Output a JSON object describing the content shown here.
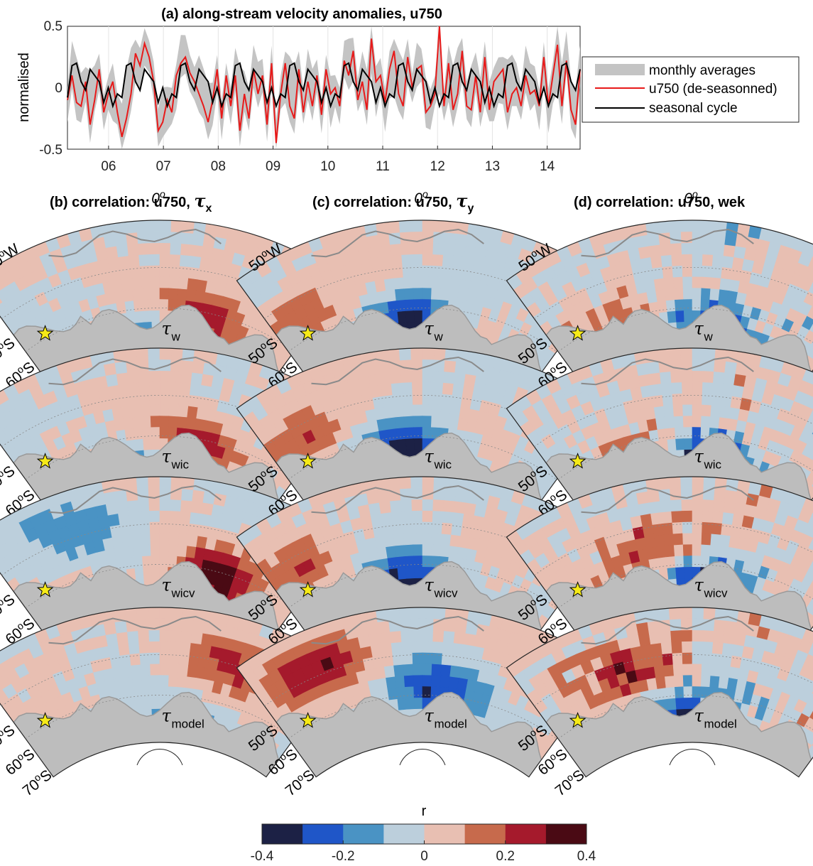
{
  "chart_data": [
    {
      "panel": "a",
      "type": "line",
      "title": "(a) along-stream velocity anomalies, u750",
      "ylabel": "normalised",
      "ylim": [
        -0.5,
        0.5
      ],
      "yticks": [
        "0.5",
        "0",
        "-0.5"
      ],
      "xticks": [
        "06",
        "07",
        "08",
        "09",
        "10",
        "11",
        "12",
        "13",
        "14"
      ],
      "x_range_years": [
        2005.25,
        2014.6
      ],
      "legend": {
        "placement": "right",
        "entries": [
          "monthly averages",
          "u750 (de-seasonned)",
          "seasonal cycle"
        ]
      },
      "colors": {
        "monthly": "#c4c4c4",
        "deseasoned": "#e81a1a",
        "seasonal": "#000000"
      },
      "seasonal_cycle_approx": [
        -0.08,
        0.18,
        0.2,
        0.05,
        -0.02,
        0.15,
        0.1,
        0.05,
        -0.12,
        0.0,
        -0.15,
        -0.05
      ],
      "series": [
        {
          "name": "u750 (de-seasonned)",
          "values": [
            -0.1,
            0.1,
            -0.12,
            -0.15,
            0.05,
            -0.3,
            -0.1,
            0.15,
            -0.2,
            -0.05,
            0.05,
            -0.2,
            -0.4,
            -0.25,
            -0.05,
            0.28,
            0.18,
            0.36,
            0.25,
            0.05,
            -0.35,
            -0.28,
            -0.1,
            -0.2,
            0.1,
            0.2,
            0.25,
            0.12,
            0.05,
            -0.05,
            -0.15,
            -0.28,
            -0.1,
            0.15,
            -0.25,
            0.1,
            -0.15,
            0.1,
            -0.35,
            -0.05,
            -0.25,
            0.15,
            -0.05,
            0.1,
            -0.3,
            0.2,
            -0.45,
            -0.05,
            0.2,
            -0.15,
            -0.25,
            0.15,
            -0.2,
            0.05,
            -0.15,
            0.1,
            -0.22,
            0.15,
            -0.05,
            0.0,
            -0.15,
            0.22,
            0.1,
            0.3,
            -0.1,
            0.05,
            -0.18,
            0.4,
            0.05,
            0.1,
            -0.12,
            0.15,
            0.3,
            -0.05,
            -0.15,
            0.25,
            0.0,
            0.15,
            0.18,
            -0.2,
            -0.15,
            -0.05,
            0.5,
            -0.15,
            0.2,
            -0.18,
            -0.05,
            0.3,
            -0.15,
            -0.18,
            0.1,
            -0.2,
            0.25,
            -0.18,
            0.05,
            0.1,
            0.15,
            -0.2,
            -0.05,
            0.0,
            -0.15,
            0.1,
            -0.05,
            -0.02,
            -0.15,
            0.25,
            -0.15,
            0.1,
            0.35,
            -0.15,
            0.22,
            -0.18,
            -0.3,
            0.15
          ]
        },
        {
          "name": "monthly averages",
          "values_envelope": "gray band around u750"
        }
      ]
    },
    {
      "panel": "b",
      "type": "heatmap",
      "title": "(b) correlation: u750, ",
      "title_sym": "τ",
      "title_sub": "x",
      "maps": [
        {
          "label": "τ",
          "sub": "w",
          "centers": [
            [
              0.66,
              0.32,
              0.32
            ],
            [
              0.48,
              0.12,
              -0.22
            ]
          ]
        },
        {
          "label": "τ",
          "sub": "wic",
          "centers": [
            [
              0.62,
              0.3,
              0.3
            ],
            [
              0.5,
              0.1,
              -0.2
            ]
          ]
        },
        {
          "label": "τ",
          "sub": "wicv",
          "centers": [
            [
              0.7,
              0.31,
              0.35
            ],
            [
              0.26,
              0.72,
              -0.18
            ]
          ]
        },
        {
          "label": "τ",
          "sub": "model",
          "centers": [
            [
              0.72,
              0.66,
              0.22
            ],
            [
              0.6,
              0.08,
              -0.22
            ]
          ]
        }
      ]
    },
    {
      "panel": "c",
      "type": "heatmap",
      "title": "(c) correlation: u750, ",
      "title_sym": "τ",
      "title_sub": "y",
      "maps": [
        {
          "label": "τ",
          "sub": "w",
          "centers": [
            [
              0.45,
              0.22,
              -0.35
            ],
            [
              0.08,
              0.5,
              0.18
            ]
          ]
        },
        {
          "label": "τ",
          "sub": "wic",
          "centers": [
            [
              0.45,
              0.25,
              -0.33
            ],
            [
              0.1,
              0.55,
              0.18
            ]
          ]
        },
        {
          "label": "τ",
          "sub": "wicv",
          "centers": [
            [
              0.45,
              0.22,
              -0.34
            ],
            [
              0.1,
              0.55,
              0.18
            ]
          ]
        },
        {
          "label": "τ",
          "sub": "model",
          "centers": [
            [
              0.55,
              0.4,
              -0.32
            ],
            [
              0.2,
              0.7,
              0.3
            ]
          ]
        }
      ]
    },
    {
      "panel": "d",
      "type": "heatmap",
      "title": "(d) correlation: u750, wek",
      "maps": [
        {
          "label": "τ",
          "sub": "w",
          "centers": [
            [
              0.55,
              0.2,
              -0.35
            ],
            [
              0.25,
              0.3,
              0.22
            ]
          ]
        },
        {
          "label": "τ",
          "sub": "wic",
          "centers": [
            [
              0.55,
              0.2,
              -0.33
            ],
            [
              0.3,
              0.25,
              0.2
            ]
          ]
        },
        {
          "label": "τ",
          "sub": "wicv",
          "centers": [
            [
              0.55,
              0.2,
              -0.34
            ],
            [
              0.35,
              0.5,
              0.22
            ]
          ]
        },
        {
          "label": "τ",
          "sub": "model",
          "centers": [
            [
              0.45,
              0.18,
              -0.3
            ],
            [
              0.3,
              0.6,
              0.25
            ]
          ]
        }
      ]
    },
    {
      "type": "colorbar",
      "label": "r",
      "ticks": [
        "-0.4",
        "-0.2",
        "0",
        "0.2",
        "0.4"
      ],
      "range": [
        -0.4,
        0.4
      ],
      "colors": [
        "#1c2145",
        "#1f56c8",
        "#4a93c4",
        "#bccfdc",
        "#e8bfb2",
        "#c76a4c",
        "#a51a2c",
        "#4a0a14"
      ]
    }
  ],
  "map_labels": {
    "lon0": "0",
    "lon50": "50",
    "lonW": "W",
    "lat50": "50",
    "lat60": "60",
    "lat70": "70",
    "latS": "S",
    "deg": "o"
  },
  "colors": {
    "land": "#bdbdbd",
    "coast": "#8a8a8a",
    "star": "#f6ea18",
    "contour": "#000000"
  }
}
